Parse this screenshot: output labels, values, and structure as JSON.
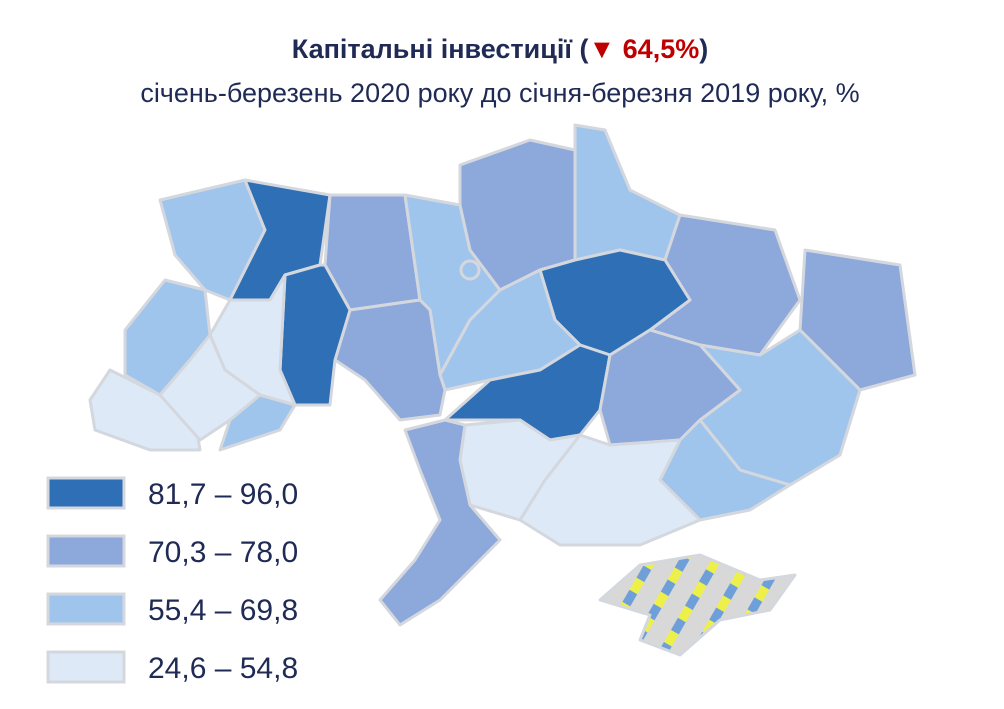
{
  "header": {
    "title": "Капітальні інвестиції (",
    "title_change": "▼ 64,5%",
    "title_close": ")",
    "subtitle": "січень-березень 2020 року до січня-березня 2019 року, %"
  },
  "legend": [
    {
      "label": "81,7 – 96,0",
      "color": "#2f6fb6"
    },
    {
      "label": "70,3 – 78,0",
      "color": "#8da8da"
    },
    {
      "label": "55,4 – 69,8",
      "color": "#a0c5ec"
    },
    {
      "label": "24,6 – 54,8",
      "color": "#dde9f6"
    }
  ]
}
